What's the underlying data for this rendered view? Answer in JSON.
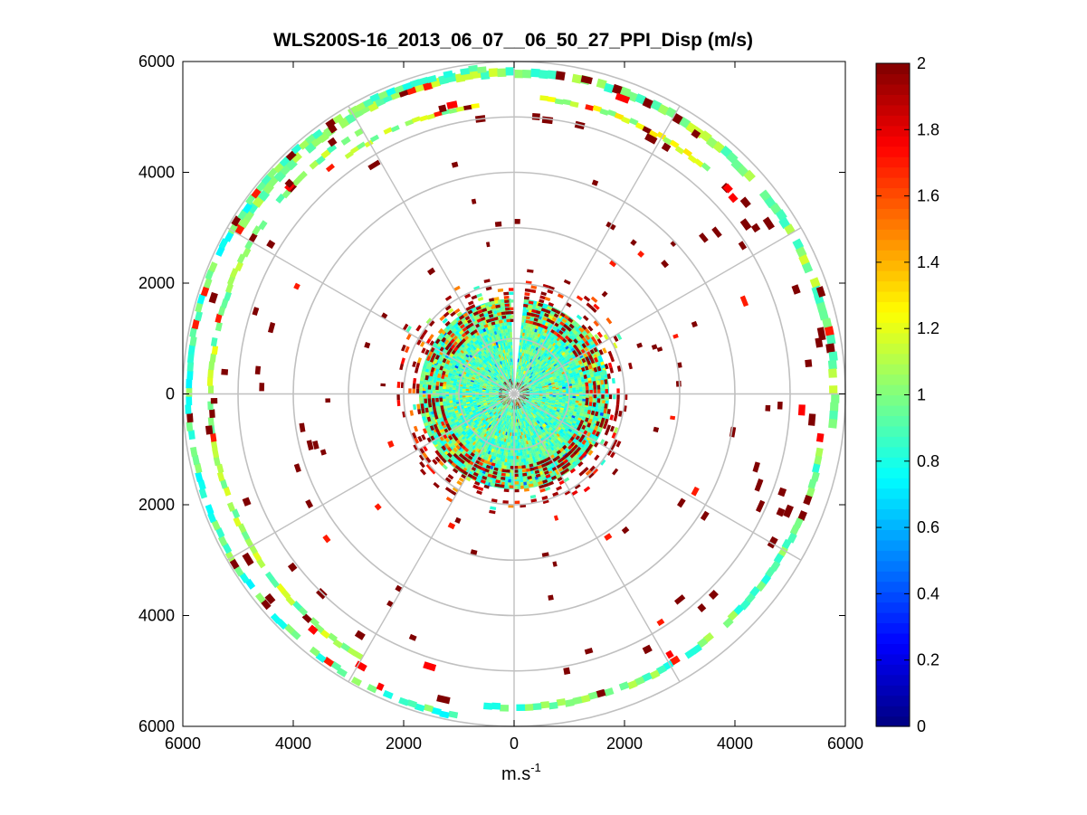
{
  "chart_data": {
    "type": "heatmap",
    "subtype": "polar-ppi",
    "title": "WLS200S-16_2013_06_07__06_50_27_PPI_Disp (m/s)",
    "xlabel_base": "m.s",
    "xlabel_exponent": "-1",
    "ylabel": "",
    "xlim": [
      -6000,
      6000
    ],
    "ylim": [
      -6000,
      6000
    ],
    "x_ticks": [
      -6000,
      -4000,
      -2000,
      0,
      2000,
      4000,
      6000
    ],
    "x_tick_labels": [
      "6000",
      "4000",
      "2000",
      "0",
      "2000",
      "4000",
      "6000"
    ],
    "y_ticks": [
      6000,
      4000,
      2000,
      0,
      -2000,
      -4000,
      -6000
    ],
    "y_tick_labels": [
      "6000",
      "4000",
      "2000",
      "0",
      "2000",
      "4000",
      "6000"
    ],
    "range_rings": [
      1000,
      2000,
      3000,
      4000,
      5000,
      6000
    ],
    "spoke_angles_deg": [
      0,
      30,
      60,
      90,
      120,
      150,
      180,
      210,
      240,
      270,
      300,
      330
    ],
    "colorbar": {
      "min": 0,
      "max": 2,
      "ticks": [
        0,
        0.2,
        0.4,
        0.6,
        0.8,
        1,
        1.2,
        1.4,
        1.6,
        1.8,
        2
      ],
      "tick_labels": [
        "0",
        "0.2",
        "0.4",
        "0.6",
        "0.8",
        "1",
        "1.2",
        "1.4",
        "1.6",
        "1.8",
        "2"
      ],
      "colormap": "jet"
    },
    "dense_region": {
      "r_min": 100,
      "r_max": 1700,
      "azimuth_gap_deg": [
        -2,
        4
      ],
      "typical_value": 0.9
    },
    "noisy_edge": {
      "r_min": 1300,
      "r_max": 2300,
      "typical_value": 1.9
    },
    "outer_bands": [
      {
        "r_center": 5800,
        "width": 150,
        "az_start": -60,
        "az_end": 95,
        "value": 1.0
      },
      {
        "r_center": 5650,
        "width": 120,
        "az_start": 100,
        "az_end": 185,
        "value": 0.95
      },
      {
        "r_center": 5900,
        "width": 110,
        "az_start": 190,
        "az_end": 355,
        "value": 0.9
      },
      {
        "r_center": 5500,
        "width": 100,
        "az_start": 210,
        "az_end": 330,
        "value": 1.05
      },
      {
        "r_center": 5350,
        "width": 90,
        "az_start": 5,
        "az_end": 40,
        "value": 1.15
      },
      {
        "r_center": 5250,
        "width": 80,
        "az_start": 320,
        "az_end": 352,
        "value": 1.1
      }
    ]
  }
}
